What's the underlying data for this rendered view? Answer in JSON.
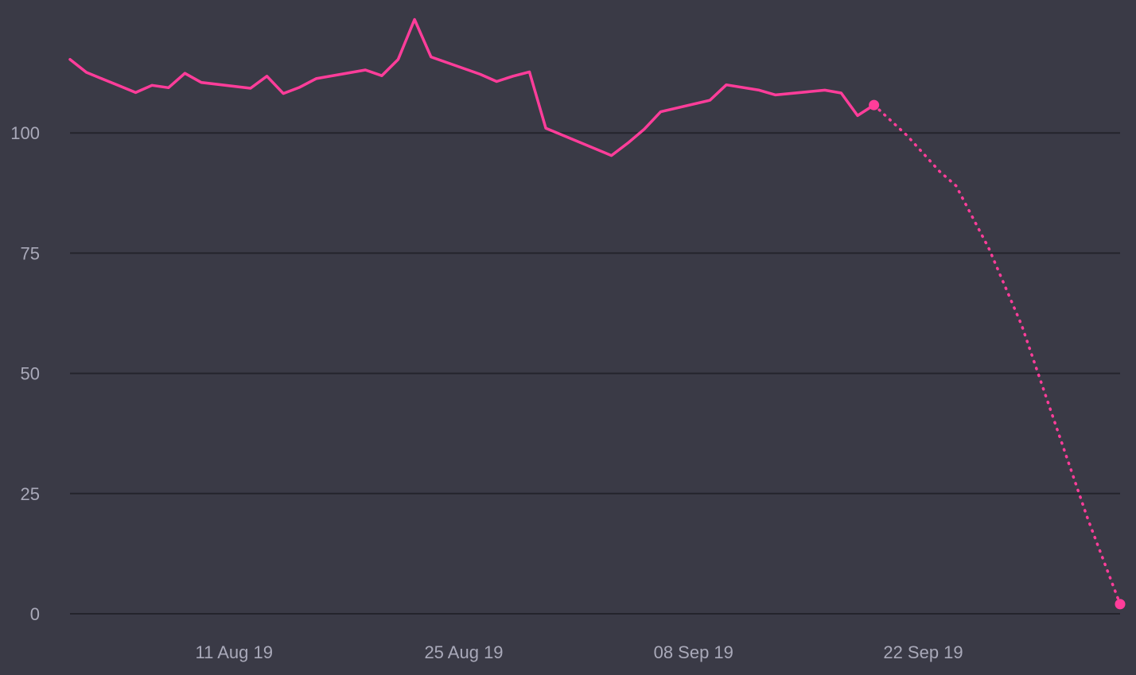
{
  "chart_data": {
    "type": "line",
    "title": "",
    "xlabel": "",
    "ylabel": "",
    "ylim": [
      0,
      125
    ],
    "xlim": [
      "2019-08-01",
      "2019-10-04"
    ],
    "grid": {
      "horizontal": true,
      "vertical": false
    },
    "legend": "none",
    "y_ticks": [
      {
        "value": 0,
        "label": "0"
      },
      {
        "value": 25,
        "label": "25"
      },
      {
        "value": 50,
        "label": "50"
      },
      {
        "value": 75,
        "label": "75"
      },
      {
        "value": 100,
        "label": "100"
      }
    ],
    "x_ticks": [
      {
        "date": "2019-08-11",
        "label": "11 Aug 19"
      },
      {
        "date": "2019-08-25",
        "label": "25 Aug 19"
      },
      {
        "date": "2019-09-08",
        "label": "08 Sep 19"
      },
      {
        "date": "2019-09-22",
        "label": "22 Sep 19"
      }
    ],
    "series": [
      {
        "style": "solid",
        "color": "#ff3d9a",
        "points": [
          {
            "x": "2019-08-01",
            "y": 115.3
          },
          {
            "x": "2019-08-02",
            "y": 112.6
          },
          {
            "x": "2019-08-03",
            "y": 111.2
          },
          {
            "x": "2019-08-04",
            "y": 109.8
          },
          {
            "x": "2019-08-05",
            "y": 108.4
          },
          {
            "x": "2019-08-06",
            "y": 109.9
          },
          {
            "x": "2019-08-07",
            "y": 109.4
          },
          {
            "x": "2019-08-08",
            "y": 112.4
          },
          {
            "x": "2019-08-09",
            "y": 110.5
          },
          {
            "x": "2019-08-12",
            "y": 109.3
          },
          {
            "x": "2019-08-13",
            "y": 111.8
          },
          {
            "x": "2019-08-14",
            "y": 108.2
          },
          {
            "x": "2019-08-15",
            "y": 109.5
          },
          {
            "x": "2019-08-16",
            "y": 111.3
          },
          {
            "x": "2019-08-19",
            "y": 113.1
          },
          {
            "x": "2019-08-20",
            "y": 111.9
          },
          {
            "x": "2019-08-21",
            "y": 115.3
          },
          {
            "x": "2019-08-22",
            "y": 123.6
          },
          {
            "x": "2019-08-23",
            "y": 115.8
          },
          {
            "x": "2019-08-26",
            "y": 112.2
          },
          {
            "x": "2019-08-27",
            "y": 110.7
          },
          {
            "x": "2019-08-28",
            "y": 111.8
          },
          {
            "x": "2019-08-29",
            "y": 112.7
          },
          {
            "x": "2019-08-30",
            "y": 101.0
          },
          {
            "x": "2019-09-03",
            "y": 95.3
          },
          {
            "x": "2019-09-04",
            "y": 97.9
          },
          {
            "x": "2019-09-05",
            "y": 100.8
          },
          {
            "x": "2019-09-06",
            "y": 104.4
          },
          {
            "x": "2019-09-09",
            "y": 106.8
          },
          {
            "x": "2019-09-10",
            "y": 110.0
          },
          {
            "x": "2019-09-12",
            "y": 108.9
          },
          {
            "x": "2019-09-13",
            "y": 107.9
          },
          {
            "x": "2019-09-16",
            "y": 108.9
          },
          {
            "x": "2019-09-17",
            "y": 108.3
          },
          {
            "x": "2019-09-18",
            "y": 103.6
          },
          {
            "x": "2019-09-19",
            "y": 105.8
          }
        ]
      },
      {
        "style": "dotted",
        "color": "#ff3d9a",
        "points": [
          {
            "x": "2019-09-19",
            "y": 105.8
          },
          {
            "x": "2019-09-21",
            "y": 99.5
          },
          {
            "x": "2019-09-23",
            "y": 92.0
          },
          {
            "x": "2019-09-24",
            "y": 89.0
          },
          {
            "x": "2019-09-26",
            "y": 76.0
          },
          {
            "x": "2019-09-28",
            "y": 60.0
          },
          {
            "x": "2019-09-30",
            "y": 40.0
          },
          {
            "x": "2019-10-02",
            "y": 20.0
          },
          {
            "x": "2019-10-04",
            "y": 2.0
          }
        ]
      }
    ]
  }
}
